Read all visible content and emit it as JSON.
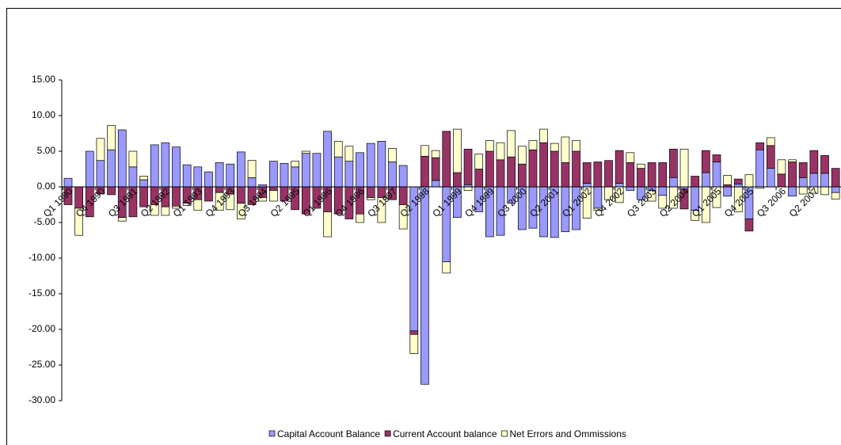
{
  "chart_data": {
    "type": "stacked_bar",
    "categories": [
      "Q1 1990",
      null,
      null,
      "Q4 1990",
      null,
      null,
      "Q3 1991",
      null,
      null,
      "Q2 1992",
      null,
      null,
      "Q1 1993",
      null,
      null,
      "Q4 1993",
      null,
      null,
      "Q3 1994",
      null,
      null,
      "Q2 1995",
      null,
      null,
      "Q1 1996",
      null,
      null,
      "Q4 1996",
      null,
      null,
      "Q3 1997",
      null,
      null,
      "Q2 1998",
      null,
      null,
      "Q1 1999",
      null,
      null,
      "Q4 1999",
      null,
      null,
      "Q3 2000",
      null,
      null,
      "Q2 2001",
      null,
      null,
      "Q1 2002",
      null,
      null,
      "Q4 2002",
      null,
      null,
      "Q3 2003",
      null,
      null,
      "Q2 2004",
      null,
      null,
      "Q1 2005",
      null,
      null,
      "Q4 2005",
      null,
      null,
      "Q3 2006",
      null,
      null,
      "Q2 2007",
      null,
      null
    ],
    "series": [
      {
        "name": "Capital Account Balance",
        "color": "#9999ff",
        "values": [
          1.2,
          0,
          5,
          3.7,
          5.2,
          8,
          2.8,
          1,
          5.9,
          6.2,
          5.6,
          3.1,
          2.8,
          2.1,
          3.4,
          3.2,
          4.9,
          1.3,
          0.3,
          3.6,
          3.3,
          2.8,
          4.7,
          4.7,
          7.8,
          4.2,
          3.6,
          4.8,
          6.1,
          6.4,
          3.5,
          3,
          -20.2,
          -27.7,
          0.9,
          -10.5,
          -4.3,
          0.3,
          -3.5,
          -7,
          -6.8,
          -2.3,
          -6,
          -5.8,
          -7,
          -7.1,
          -6.3,
          -6,
          0.5,
          -3,
          0,
          0.5,
          -0.5,
          -1.8,
          -0.5,
          -1.2,
          1.3,
          -0.3,
          -3.3,
          2,
          3.5,
          -1.3,
          0.4,
          -4.5,
          5.2,
          2.6,
          0,
          -1.3,
          1.3,
          1.9,
          1.9,
          -0.8
        ]
      },
      {
        "name": "Current Account balance",
        "color": "#993366",
        "values": [
          -2.5,
          -3,
          -4.2,
          -1,
          -1.1,
          -4.3,
          -4.2,
          -2.8,
          -2.5,
          -2.8,
          -2.7,
          -2.3,
          -1.8,
          -2,
          -0.8,
          -1,
          -2.3,
          -2.5,
          -1.5,
          -0.5,
          -2,
          -3.2,
          -3.8,
          -3,
          -3.5,
          -3.8,
          -4.5,
          -3.8,
          -1.5,
          -1.5,
          -1.8,
          -2.5,
          -0.5,
          4.3,
          3.2,
          7.8,
          2,
          5,
          2.5,
          5,
          3.8,
          4.2,
          3.2,
          5.2,
          6.2,
          5,
          3.4,
          5,
          2.9,
          3.5,
          3.7,
          4.6,
          3.4,
          2.6,
          3.4,
          3.4,
          4,
          -2.8,
          1.5,
          3.1,
          1,
          0.3,
          0.7,
          -1.7,
          1,
          3.2,
          1.8,
          3.5,
          2.1,
          3.2,
          2.5,
          2.6
        ]
      },
      {
        "name": "Net Errors and Ommissions",
        "color": "#ffffcc",
        "values": [
          0,
          -3.8,
          0,
          3.1,
          3.4,
          -0.5,
          2.2,
          0.5,
          -1.5,
          -1.2,
          -0.3,
          -0.3,
          -1.5,
          0,
          -2.5,
          -2.2,
          -2.2,
          2.4,
          -0.5,
          -1.5,
          0,
          0.8,
          0.3,
          0,
          -3.5,
          2.2,
          2.1,
          -1.2,
          -0.3,
          -3.5,
          1.9,
          -3.4,
          -2.7,
          1.5,
          1,
          -1.6,
          6.1,
          -0.5,
          2.1,
          1.5,
          2.4,
          3.7,
          2.5,
          1.3,
          1.9,
          1.1,
          3.6,
          1.5,
          -4.4,
          -0.3,
          -1.8,
          -2.2,
          1.4,
          0.6,
          -1.5,
          -1.8,
          -3,
          5.3,
          -1.4,
          -5,
          -2.9,
          1.3,
          -3.5,
          1.7,
          -0.2,
          1.1,
          2,
          0.3,
          -1,
          -0.9,
          -1.1,
          -0.9
        ]
      }
    ],
    "ylim": [
      -30,
      15
    ],
    "yticks": [
      {
        "value": -30,
        "label": "-30.00"
      },
      {
        "value": -25,
        "label": "-25.00"
      },
      {
        "value": -20,
        "label": "-20.00"
      },
      {
        "value": -15,
        "label": "-15.00"
      },
      {
        "value": -10,
        "label": "-10.00"
      },
      {
        "value": -5,
        "label": "-5.00"
      },
      {
        "value": 0,
        "label": "0.00"
      },
      {
        "value": 5,
        "label": "5.00"
      },
      {
        "value": 10,
        "label": "10.00"
      },
      {
        "value": 15,
        "label": "15.00"
      }
    ],
    "legend": "bottom"
  }
}
